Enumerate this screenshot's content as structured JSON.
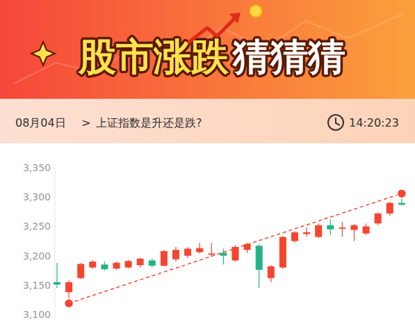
{
  "header": {
    "title": [
      "股市涨跌",
      "猜猜猜"
    ],
    "date": "08月04日",
    "separator": ">",
    "question": "上证指数是升还是跌?",
    "time": "14:20:23"
  },
  "chart_data": {
    "type": "candlestick",
    "categories": [
      null,
      null,
      null,
      null,
      null,
      null,
      null,
      null,
      null,
      null,
      null,
      null,
      null,
      null,
      null,
      null,
      null,
      null,
      null,
      null,
      null,
      null,
      null,
      null,
      null,
      null,
      null,
      null,
      null,
      null
    ],
    "open": [
      3155,
      3138,
      3162,
      3180,
      3185,
      3178,
      3180,
      3184,
      3192,
      3183,
      3194,
      3200,
      3206,
      3202,
      3205,
      3192,
      3210,
      3217,
      3162,
      3180,
      3225,
      3237,
      3232,
      3252,
      3246,
      3244,
      3238,
      3255,
      3272,
      3290
    ],
    "high": [
      3188,
      3158,
      3188,
      3192,
      3190,
      3190,
      3193,
      3197,
      3195,
      3210,
      3215,
      3215,
      3222,
      3222,
      3212,
      3218,
      3222,
      3220,
      3184,
      3234,
      3242,
      3248,
      3255,
      3262,
      3258,
      3254,
      3255,
      3274,
      3292,
      3300
    ],
    "low": [
      3145,
      3125,
      3160,
      3178,
      3175,
      3176,
      3178,
      3180,
      3180,
      3182,
      3190,
      3196,
      3204,
      3198,
      3185,
      3190,
      3205,
      3145,
      3155,
      3178,
      3222,
      3232,
      3230,
      3235,
      3232,
      3225,
      3235,
      3252,
      3268,
      3285
    ],
    "close": [
      3151,
      3155,
      3186,
      3190,
      3177,
      3188,
      3191,
      3195,
      3183,
      3208,
      3210,
      3212,
      3213,
      3204,
      3200,
      3215,
      3220,
      3176,
      3182,
      3232,
      3240,
      3240,
      3252,
      3245,
      3248,
      3252,
      3250,
      3272,
      3290,
      3287
    ],
    "colors": [
      "#23b387",
      "#f4452f",
      "#f4452f",
      "#f4452f",
      "#23b387",
      "#f4452f",
      "#f4452f",
      "#f4452f",
      "#23b387",
      "#f4452f",
      "#f4452f",
      "#f4452f",
      "#f4452f",
      "#f4452f",
      "#23b387",
      "#f4452f",
      "#f4452f",
      "#23b387",
      "#f4452f",
      "#f4452f",
      "#f4452f",
      "#f4452f",
      "#f4452f",
      "#23b387",
      "#f4452f",
      "#f4452f",
      "#f4452f",
      "#f4452f",
      "#f4452f",
      "#23b387"
    ],
    "trend_line": {
      "type": "line",
      "x": [
        1,
        29
      ],
      "values": [
        3119,
        3306
      ],
      "color": "#f4452f",
      "line_style": "dashed",
      "marker": "circle"
    },
    "ylim": [
      3100,
      3350
    ],
    "yticks": [
      {
        "value": 3100,
        "label": "3,100"
      },
      {
        "value": 3150,
        "label": "3,150"
      },
      {
        "value": 3200,
        "label": "3,200"
      },
      {
        "value": 3250,
        "label": "3,250"
      },
      {
        "value": 3300,
        "label": "3,300"
      },
      {
        "value": 3350,
        "label": "3,350"
      }
    ],
    "grid": false
  }
}
